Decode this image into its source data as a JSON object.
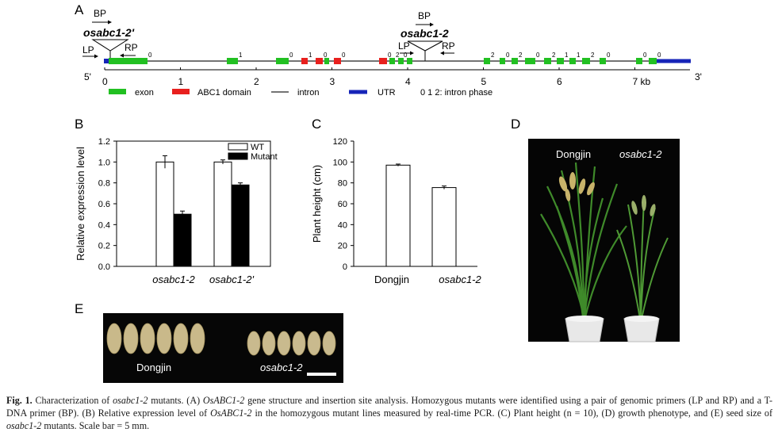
{
  "panel_labels": {
    "a": "A",
    "b": "B",
    "c": "C",
    "d": "D",
    "e": "E"
  },
  "panel_a": {
    "five_prime": "5'",
    "three_prime": "3'",
    "primer_bp": "BP",
    "primer_lp": "LP",
    "primer_rp": "RP",
    "insertion_label": "osabc1-2",
    "insertion_label_prime": "osabc1-2'",
    "kb_ticks": [
      "0",
      "1",
      "2",
      "3",
      "4",
      "5",
      "6",
      "7 kb"
    ],
    "intron_phases": [
      "0",
      "1",
      "0",
      "1",
      "0",
      "0",
      "0",
      "2",
      "0",
      "2",
      "0",
      "2",
      "0",
      "2",
      "1",
      "1",
      "2",
      "0",
      "0",
      "0",
      "0"
    ],
    "legend": {
      "exon": "exon",
      "abc1": "ABC1 domain",
      "intron": "intron",
      "utr": "UTR",
      "phase": "0 1 2: intron phase"
    },
    "colors": {
      "exon": "#22c022",
      "abc1": "#e8201e",
      "utr": "#1624b8",
      "intron": "#222222"
    }
  },
  "panel_b": {
    "chart_data": {
      "type": "bar",
      "categories": [
        "osabc1-2",
        "osabc1-2'"
      ],
      "series": [
        {
          "name": "WT",
          "values": [
            1.0,
            1.0
          ],
          "errors": [
            0.06,
            0.02
          ],
          "fill": "#ffffff"
        },
        {
          "name": "Mutant",
          "values": [
            0.5,
            0.78
          ],
          "errors": [
            0.03,
            0.02
          ],
          "fill": "#000000"
        }
      ],
      "ylabel": "Relative expression level",
      "ylim": [
        0,
        1.2
      ],
      "yticks": [
        "0.0",
        "0.2",
        "0.4",
        "0.6",
        "0.8",
        "1.0",
        "1.2"
      ],
      "legend": [
        "WT",
        "Mutant"
      ]
    }
  },
  "panel_c": {
    "chart_data": {
      "type": "bar",
      "categories": [
        "Dongjin",
        "osabc1-2"
      ],
      "values": [
        97,
        75.5
      ],
      "errors": [
        1.0,
        1.5
      ],
      "ylabel": "Plant height (cm)",
      "ylim": [
        0,
        120
      ],
      "yticks": [
        "0",
        "20",
        "40",
        "60",
        "80",
        "100",
        "120"
      ]
    }
  },
  "panel_d": {
    "left_label": "Dongjin",
    "right_label": "osabc1-2"
  },
  "panel_e": {
    "left_label": "Dongjin",
    "right_label": "osabc1-2"
  },
  "caption": {
    "fig": "Fig. 1.",
    "p1": " Characterization of ",
    "i1": "osabc1-2",
    "p2": " mutants. (A) ",
    "i2": "OsABC1-2",
    "p3": " gene structure and insertion site analysis. Homozygous mutants were identified using a pair of genomic primers (LP and RP) and a T-DNA primer (BP). (B) Relative expression level of ",
    "i3": "OsABC1-2",
    "p4": " in the homozygous mutant lines measured by real-time PCR. (C) Plant height (n = 10), (D) growth phenotype, and (E) seed size of ",
    "i4": "osabc1-2",
    "p5": " mutants. Scale bar = 5 mm."
  }
}
